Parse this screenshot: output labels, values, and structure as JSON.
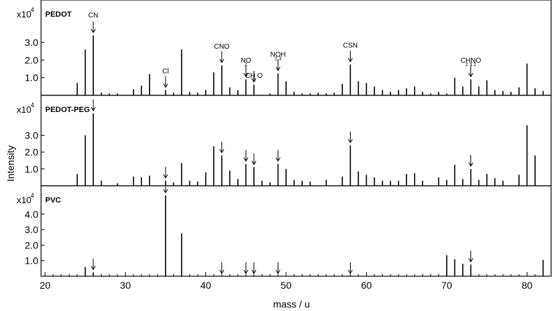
{
  "chart_data": {
    "type": "bar",
    "xlabel": "mass / u",
    "ylabel": "Intensity",
    "xlim": [
      19.5,
      83
    ],
    "x_ticks": [
      "20",
      "30",
      "40",
      "50",
      "60",
      "70",
      "80"
    ],
    "panels": [
      {
        "name": "PEDOT",
        "multiplier_base": "x10",
        "multiplier_exp": "4",
        "ylim": [
          0,
          4.3
        ],
        "y_ticks": [
          "1.0",
          "2.0",
          "3.0"
        ],
        "series": [
          {
            "name": "PEDOT",
            "x": [
              24,
              25,
              26,
              27,
              28,
              29,
              31,
              32,
              33,
              35,
              36,
              37,
              38,
              39,
              40,
              41,
              42,
              43,
              44,
              45,
              46,
              48,
              49,
              50,
              51,
              52,
              53,
              54,
              55,
              56,
              57,
              58,
              59,
              60,
              61,
              62,
              63,
              64,
              65,
              66,
              67,
              68,
              69,
              70,
              71,
              72,
              73,
              74,
              75,
              76,
              77,
              78,
              79,
              80,
              81,
              82
            ],
            "values": [
              0.7,
              2.6,
              3.4,
              0.15,
              0.1,
              0.1,
              0.35,
              0.55,
              1.2,
              0.3,
              0.15,
              2.6,
              0.2,
              0.15,
              0.3,
              1.3,
              1.7,
              0.45,
              0.3,
              0.9,
              0.6,
              0.1,
              1.25,
              0.8,
              0.2,
              0.1,
              0.1,
              0.15,
              0.1,
              0.15,
              0.65,
              1.75,
              0.8,
              0.7,
              0.5,
              0.3,
              0.2,
              0.3,
              0.4,
              0.5,
              0.2,
              0.1,
              0.2,
              0.1,
              1.0,
              0.5,
              0.9,
              0.5,
              0.85,
              0.3,
              0.25,
              0.2,
              0.45,
              1.8,
              0.4,
              0.25
            ]
          }
        ],
        "annotations": [
          {
            "x": 26,
            "label": "CN",
            "sub": ""
          },
          {
            "x": 35,
            "label": "Cl",
            "sub": ""
          },
          {
            "x": 42,
            "label": "CNO",
            "sub": ""
          },
          {
            "x": 45,
            "label": "NO",
            "sub": "2"
          },
          {
            "x": 46,
            "label": "CH O",
            "sub": "2"
          },
          {
            "x": 49,
            "label": "NOH",
            "sub": "2 3"
          },
          {
            "x": 58,
            "label": "CSN",
            "sub": ""
          },
          {
            "x": 73,
            "label": "CHNO",
            "sub": "2 3  2"
          }
        ]
      },
      {
        "name": "PEDOT-PEG",
        "multiplier_base": "x10",
        "multiplier_exp": "4",
        "ylim": [
          0,
          4.3
        ],
        "y_ticks": [
          "1.0",
          "2.0",
          "3.0"
        ],
        "series": [
          {
            "name": "PEDOT-PEG",
            "x": [
              24,
              25,
              26,
              27,
              29,
              31,
              32,
              33,
              35,
              36,
              37,
              38,
              39,
              40,
              41,
              42,
              43,
              44,
              45,
              46,
              47,
              48,
              49,
              50,
              51,
              52,
              53,
              55,
              57,
              58,
              59,
              60,
              61,
              62,
              63,
              64,
              65,
              66,
              67,
              69,
              70,
              71,
              72,
              73,
              74,
              75,
              76,
              77,
              79,
              80,
              81
            ],
            "values": [
              0.7,
              3.0,
              4.3,
              0.3,
              0.15,
              0.55,
              0.5,
              0.6,
              0.3,
              0.2,
              1.35,
              0.3,
              0.25,
              0.8,
              2.35,
              1.8,
              0.9,
              0.4,
              1.3,
              1.1,
              0.3,
              0.2,
              1.3,
              1.0,
              0.35,
              0.3,
              0.25,
              0.35,
              0.55,
              2.4,
              0.85,
              0.65,
              0.5,
              0.3,
              0.3,
              0.3,
              0.7,
              0.75,
              0.3,
              0.5,
              0.35,
              1.25,
              0.4,
              1.0,
              0.35,
              0.7,
              0.45,
              0.3,
              0.65,
              3.6,
              1.8
            ]
          }
        ],
        "arrows_x": [
          26,
          35,
          42,
          45,
          46,
          49,
          58,
          73
        ]
      },
      {
        "name": "PVC",
        "multiplier_base": "x10",
        "multiplier_exp": "4",
        "ylim": [
          0,
          5.2
        ],
        "y_ticks": [
          "1.0",
          "2.0",
          "3.0",
          "4.0"
        ],
        "series": [
          {
            "name": "PVC",
            "x": [
              25,
              26,
              35,
              37,
              70,
              71,
              72,
              73,
              82
            ],
            "values": [
              0.6,
              0.25,
              5.2,
              2.75,
              1.35,
              1.1,
              0.8,
              0.75,
              1.05
            ]
          }
        ],
        "arrows_x": [
          26,
          35,
          42,
          45,
          46,
          49,
          58,
          73
        ]
      }
    ]
  }
}
